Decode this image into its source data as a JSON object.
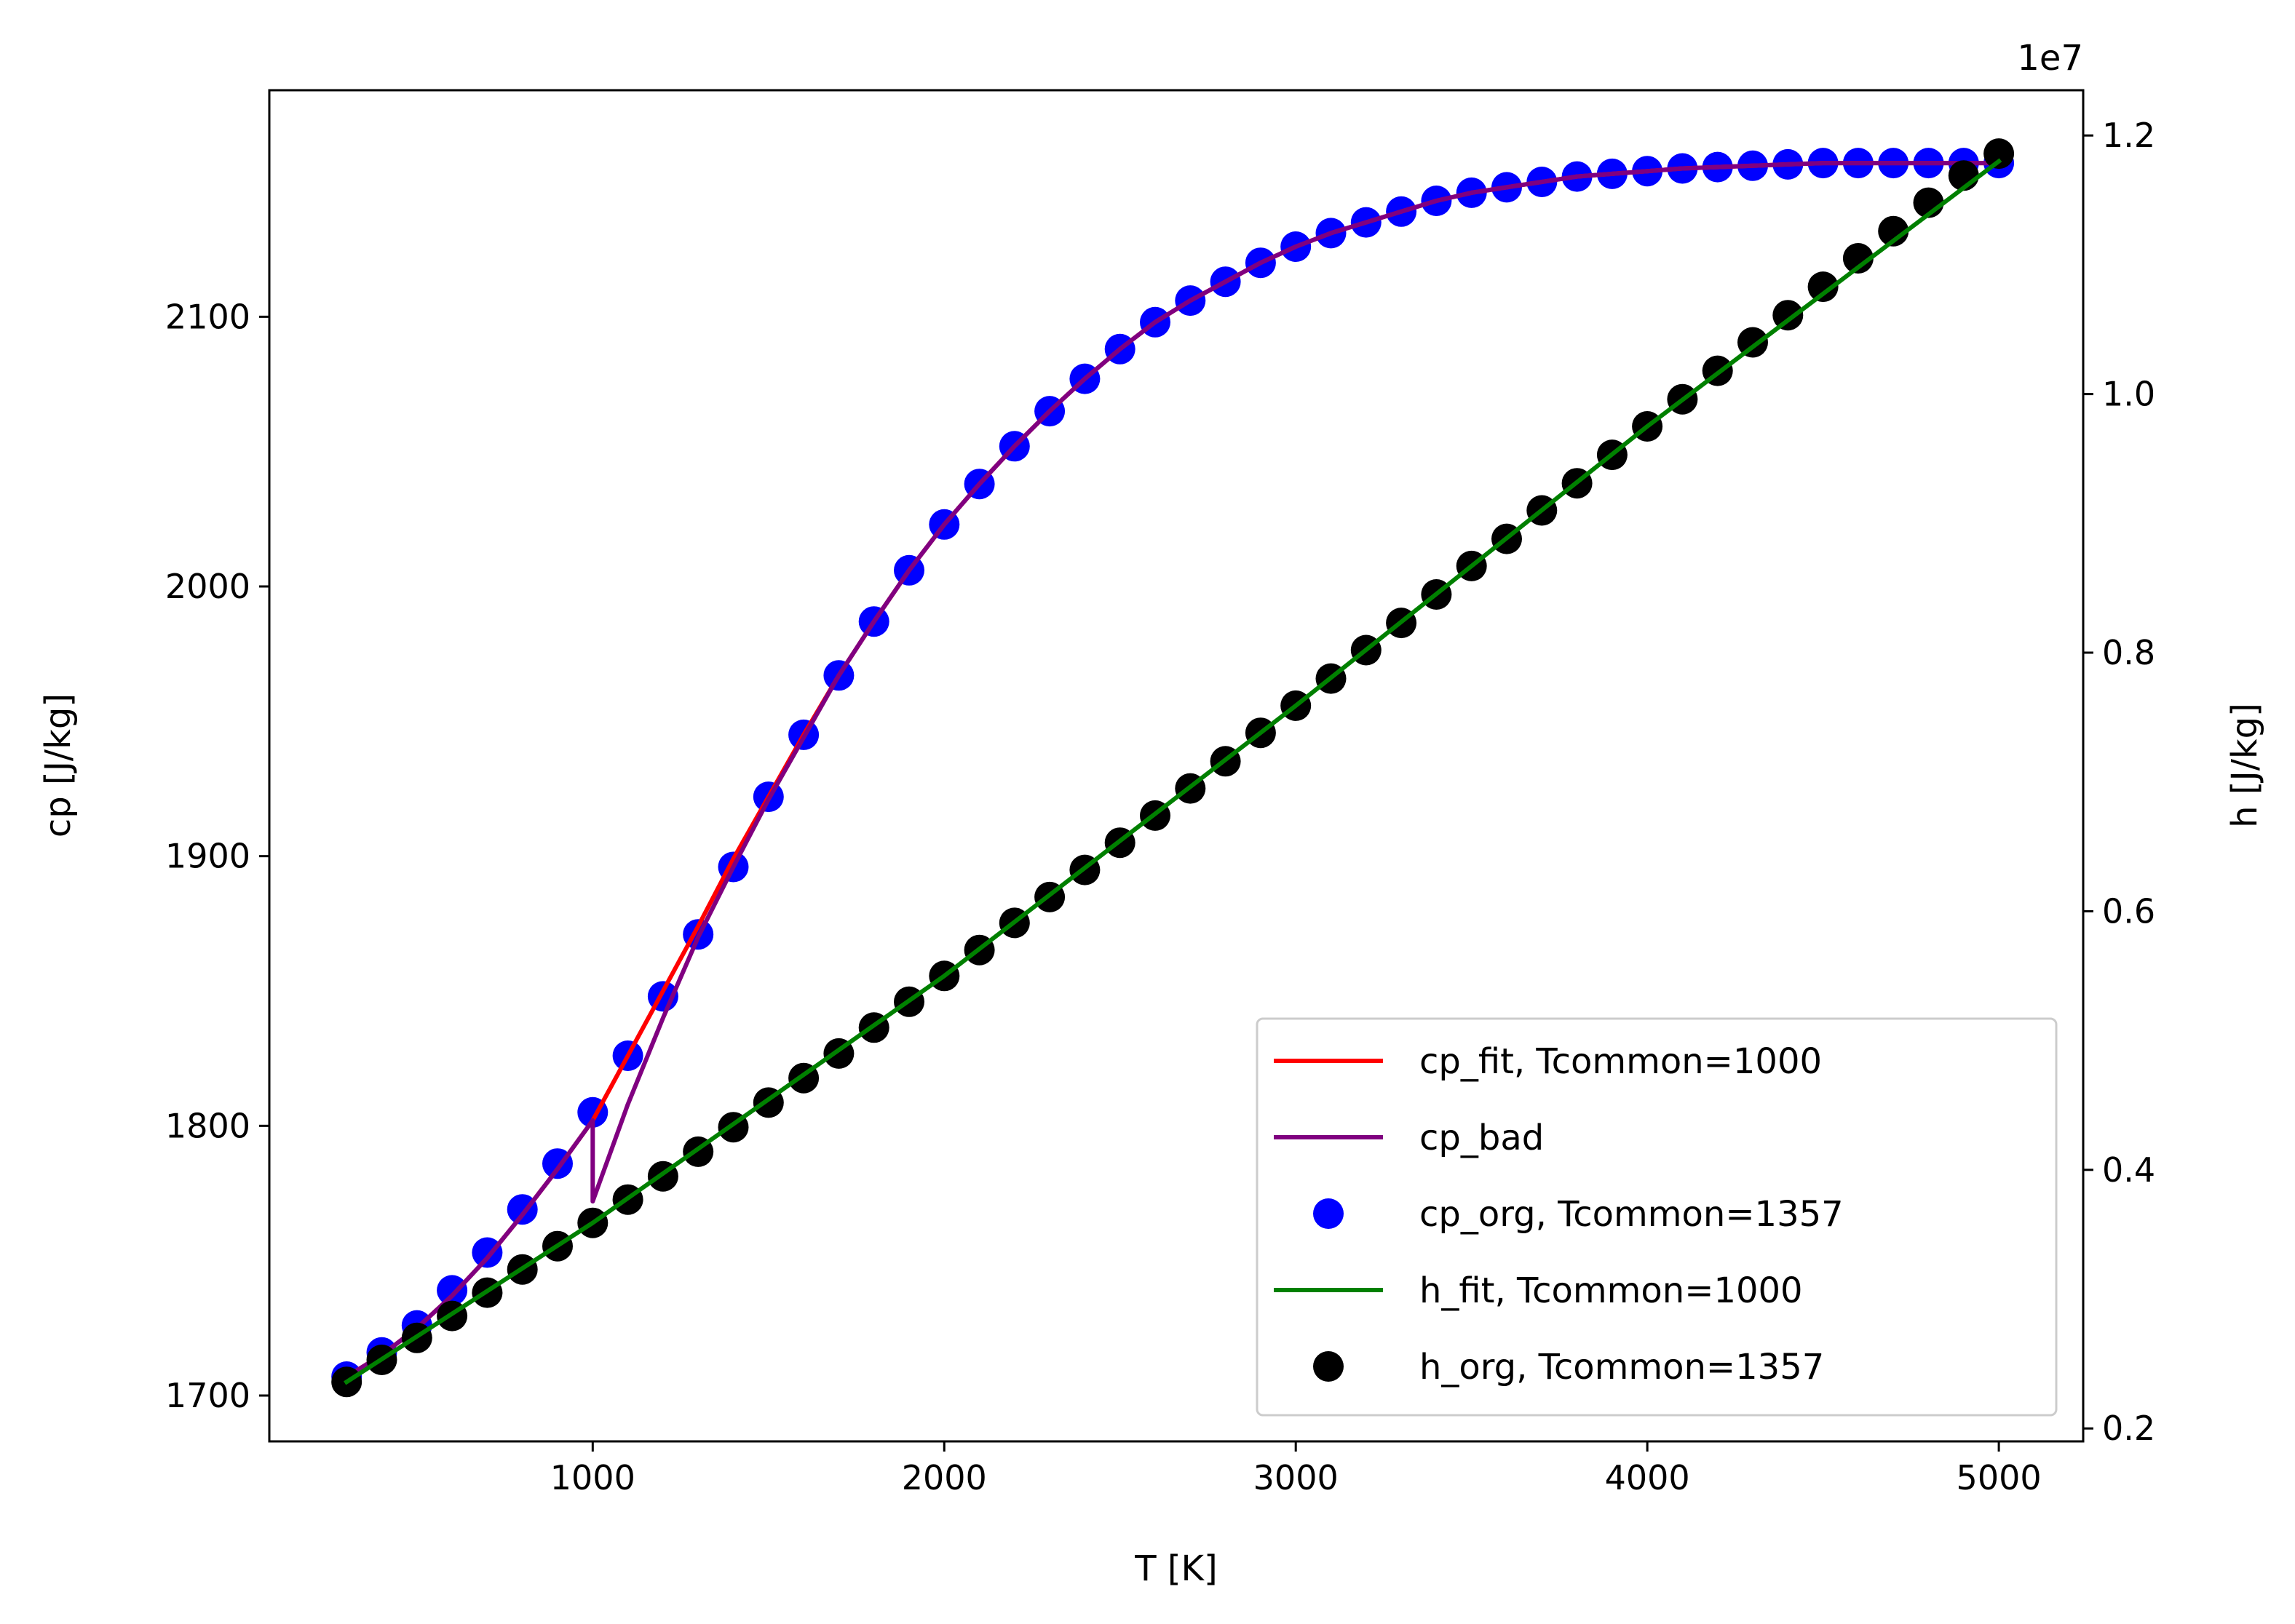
{
  "chart_data": {
    "type": "line",
    "title": "",
    "xlabel": "T [K]",
    "ylabel": "cp [J/kg]",
    "y2label": "h [J/kg]",
    "y2_offset_text": "1e7",
    "xlim": [
      80,
      5240
    ],
    "ylim": [
      1683,
      2184
    ],
    "y2lim": [
      0.19,
      1.235
    ],
    "x_ticks": [
      1000,
      2000,
      3000,
      4000,
      5000
    ],
    "y_ticks": [
      1700,
      1800,
      1900,
      2000,
      2100
    ],
    "y2_ticks": [
      0.2,
      0.4,
      0.6,
      0.8,
      1.0,
      1.2
    ],
    "x_tick_labels": [
      "1000",
      "2000",
      "3000",
      "4000",
      "5000"
    ],
    "y_tick_labels": [
      "1700",
      "1800",
      "1900",
      "2000",
      "2100"
    ],
    "y2_tick_labels": [
      "0.2",
      "0.4",
      "0.6",
      "0.8",
      "1.0",
      "1.2"
    ],
    "grid": false,
    "legend_position": "lower-right",
    "legend": [
      {
        "key": "cp_fit",
        "label": "cp_fit, Tcommon=1000",
        "color": "#ff0000",
        "kind": "line"
      },
      {
        "key": "cp_bad",
        "label": "cp_bad",
        "color": "#800080",
        "kind": "line"
      },
      {
        "key": "cp_org",
        "label": "cp_org, Tcommon=1357",
        "color": "#0000ff",
        "kind": "marker"
      },
      {
        "key": "h_fit",
        "label": "h_fit, Tcommon=1000",
        "color": "#008000",
        "kind": "line"
      },
      {
        "key": "h_org",
        "label": "h_org, Tcommon=1357",
        "color": "#000000",
        "kind": "marker"
      }
    ],
    "T_points": [
      300,
      400,
      500,
      600,
      700,
      800,
      900,
      1000,
      1100,
      1200,
      1300,
      1400,
      1500,
      1600,
      1700,
      1800,
      1900,
      2000,
      2100,
      2200,
      2300,
      2400,
      2500,
      2600,
      2700,
      2800,
      2900,
      3000,
      3100,
      3200,
      3300,
      3400,
      3500,
      3600,
      3700,
      3800,
      3900,
      4000,
      4100,
      4200,
      4300,
      4400,
      4500,
      4600,
      4700,
      4800,
      4900,
      5000
    ],
    "cp_org": [
      1707,
      1716,
      1726,
      1739,
      1753,
      1769,
      1786,
      1805,
      1826,
      1848,
      1871,
      1896,
      1922,
      1945,
      1967,
      1987,
      2006,
      2023,
      2038,
      2052,
      2065,
      2077,
      2088,
      2098,
      2106,
      2113,
      2120,
      2126,
      2131,
      2135,
      2139,
      2143,
      2146,
      2148,
      2150,
      2152,
      2153,
      2154,
      2155,
      2155.5,
      2156,
      2156.5,
      2157,
      2157,
      2157,
      2157,
      2157,
      2157
    ],
    "cp_fit": {
      "T": [
        300,
        400,
        500,
        600,
        700,
        800,
        900,
        1000,
        1100,
        1200,
        1300,
        1400,
        1500,
        1600,
        1700,
        1800,
        1900,
        2000,
        2100,
        2200,
        2300,
        2400,
        2500,
        2600,
        2700,
        2800,
        2900,
        3000,
        3100,
        3200,
        3300,
        3400,
        3500,
        3600,
        3700,
        3800,
        3900,
        4000,
        4100,
        4200,
        4300,
        4400,
        4500,
        4600,
        4700,
        4800,
        4900,
        5000
      ],
      "values": [
        1707,
        1715,
        1725,
        1737,
        1751,
        1767,
        1784,
        1802,
        1826,
        1850,
        1874,
        1899,
        1922,
        1945,
        1967,
        1987,
        2006,
        2023,
        2038,
        2052,
        2065,
        2077,
        2088,
        2098,
        2106,
        2113,
        2120,
        2126,
        2131,
        2135,
        2139,
        2143,
        2146,
        2148,
        2150,
        2152,
        2153,
        2154,
        2155,
        2155.5,
        2156,
        2156.5,
        2157,
        2157,
        2157,
        2157,
        2157,
        2157
      ]
    },
    "cp_bad": {
      "T": [
        300,
        400,
        500,
        600,
        700,
        800,
        900,
        1000,
        1000,
        1100,
        1200,
        1300,
        1400,
        1500,
        1600,
        1700,
        1800,
        1900,
        2000,
        2100,
        2200,
        2300,
        2400,
        2500,
        2600,
        2700,
        2800,
        2900,
        3000,
        3100,
        3200,
        3300,
        3400,
        3500,
        3600,
        3700,
        3800,
        3900,
        4000,
        4100,
        4200,
        4300,
        4400,
        4500,
        4600,
        4700,
        4800,
        4900,
        5000
      ],
      "values": [
        1707,
        1715,
        1725,
        1737,
        1751,
        1767,
        1784,
        1802,
        1772,
        1808,
        1840,
        1870,
        1896,
        1921,
        1944,
        1967,
        1987,
        2006,
        2023,
        2038,
        2052,
        2065,
        2077,
        2088,
        2098,
        2106,
        2113,
        2120,
        2126,
        2131,
        2135,
        2139,
        2143,
        2146,
        2148,
        2150,
        2152,
        2153,
        2154,
        2155,
        2155.5,
        2156,
        2156.5,
        2157,
        2157,
        2157,
        2157,
        2157,
        2157
      ]
    },
    "h_org": [
      0.236,
      0.253,
      0.27,
      0.287,
      0.305,
      0.323,
      0.341,
      0.359,
      0.377,
      0.395,
      0.414,
      0.433,
      0.452,
      0.471,
      0.49,
      0.51,
      0.53,
      0.55,
      0.57,
      0.591,
      0.611,
      0.632,
      0.653,
      0.674,
      0.695,
      0.716,
      0.738,
      0.759,
      0.78,
      0.802,
      0.823,
      0.845,
      0.867,
      0.888,
      0.91,
      0.931,
      0.953,
      0.975,
      0.996,
      1.018,
      1.04,
      1.061,
      1.083,
      1.105,
      1.126,
      1.148,
      1.169,
      1.186
    ],
    "h_fit": {
      "T": [
        300,
        1000,
        2000,
        3000,
        4000,
        5000
      ],
      "values": [
        0.236,
        0.359,
        0.55,
        0.759,
        0.975,
        1.18
      ]
    }
  }
}
